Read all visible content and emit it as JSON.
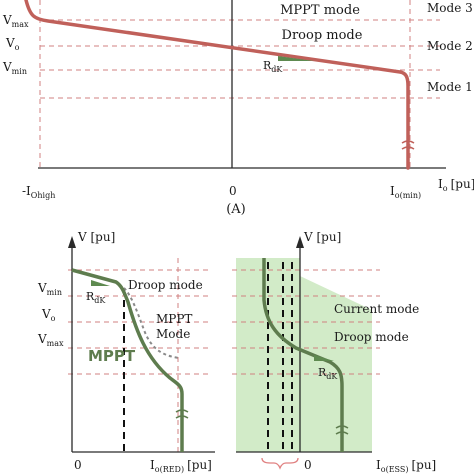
{
  "panel_a": {
    "caption": "(A)",
    "labels": {
      "vmax_main": "V",
      "vmax_sub": "max",
      "vo_main": "V",
      "vo_sub": "o",
      "vmin_main": "V",
      "vmin_sub": "min",
      "x_left_main": "-I",
      "x_left_sub": "Ohigh",
      "x_zero": "0",
      "x_right_main": "I",
      "x_right_sub": "o(min)",
      "x_axis_main": "I",
      "x_axis_sub": "o",
      "x_axis_unit": "[pu]"
    },
    "regions": {
      "mppt": "MPPT mode",
      "droop": "Droop mode"
    },
    "modes": {
      "mode3": "Mode 3",
      "mode2": "Mode 2",
      "mode1": "Mode 1"
    },
    "rdk_main": "R",
    "rdk_sub": "dK"
  },
  "panel_b": {
    "y_axis": "V [pu]",
    "vmin_main": "V",
    "vmin_sub": "min",
    "vo_main": "V",
    "vo_sub": "o",
    "vmax_main": "V",
    "vmax_sub": "max",
    "droop": "Droop mode",
    "mppt_line1": "MPPT",
    "mppt_line2": "Mode",
    "mppt_curve": "MPPT",
    "rdk_main": "R",
    "rdk_sub": "dK",
    "x_zero": "0",
    "x_axis_main": "I",
    "x_axis_sub": "o(RED)",
    "x_axis_unit": "[pu]"
  },
  "panel_c": {
    "y_axis": "V [pu]",
    "current": "Current mode",
    "droop": "Droop mode",
    "rdk_main": "R",
    "rdk_sub": "dK",
    "x_zero": "0",
    "x_axis_main": "I",
    "x_axis_sub": "o(ESS)",
    "x_axis_unit": "[pu]"
  },
  "colors": {
    "curve_a": "#c0605a",
    "curve_b": "#5e7c4e",
    "dashed_red": "#d08080",
    "shade_green": "#d2ebc8",
    "triangle_fill": "#5e8a50"
  }
}
